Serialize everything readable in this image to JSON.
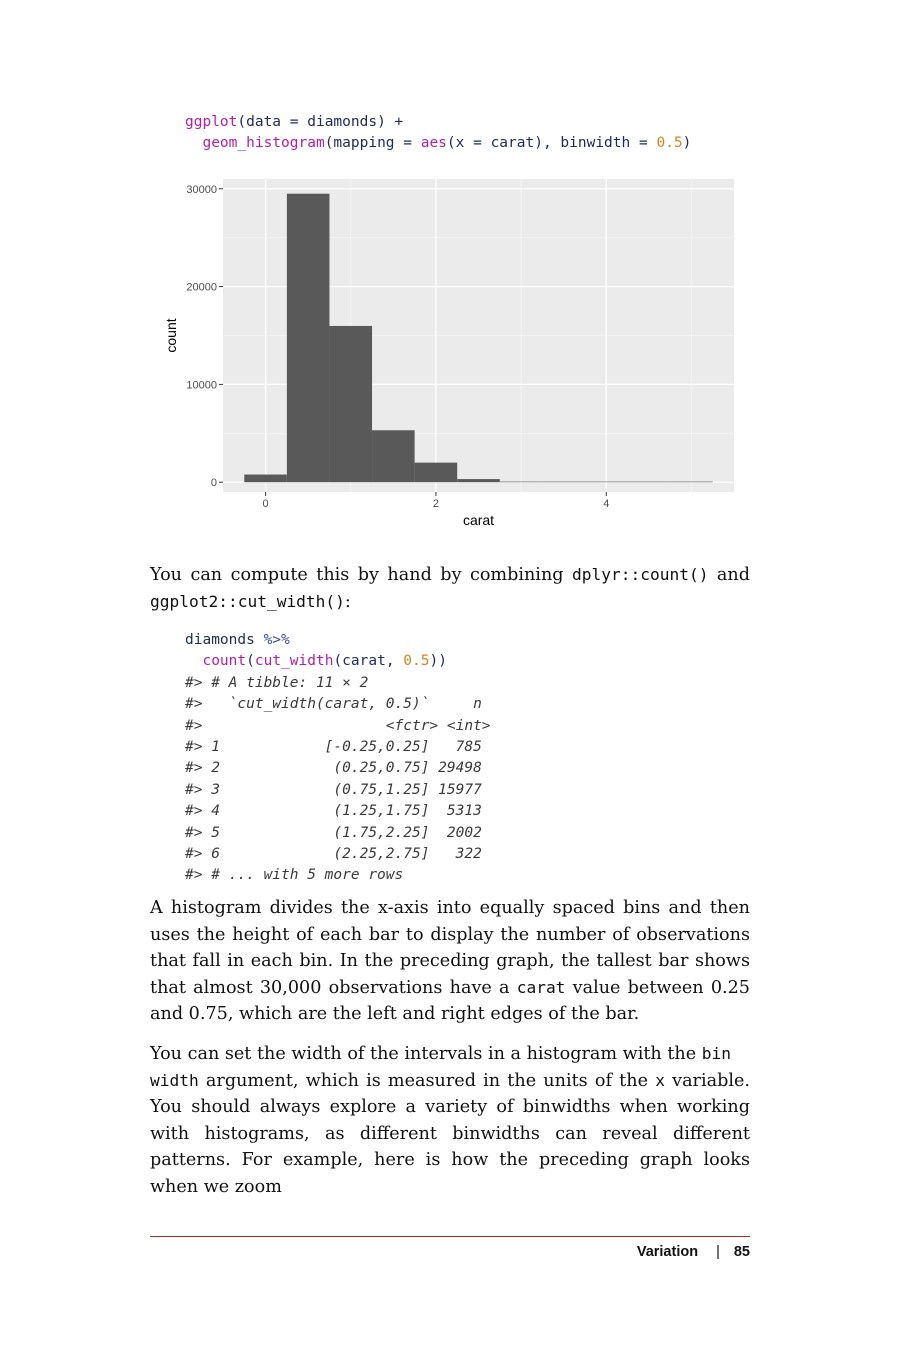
{
  "code_block_1": {
    "lines": [
      [
        {
          "t": "ggplot",
          "c": "fn"
        },
        {
          "t": "(data = diamonds) +",
          "c": "plain"
        }
      ],
      [
        {
          "t": "  ",
          "c": "plain"
        },
        {
          "t": "geom_histogram",
          "c": "fn"
        },
        {
          "t": "(mapping = ",
          "c": "plain"
        },
        {
          "t": "aes",
          "c": "fn"
        },
        {
          "t": "(x = carat), binwidth = ",
          "c": "plain"
        },
        {
          "t": "0.5",
          "c": "num"
        },
        {
          "t": ")",
          "c": "plain"
        }
      ]
    ]
  },
  "chart_data": {
    "type": "bar",
    "xlabel": "carat",
    "ylabel": "count",
    "xlim": [
      -0.5,
      5.5
    ],
    "ylim": [
      -1000,
      31000
    ],
    "xticks": [
      0,
      2,
      4
    ],
    "yticks": [
      0,
      10000,
      20000,
      30000
    ],
    "ytick_labels": [
      "0",
      "10000",
      "20000",
      "30000"
    ],
    "bins": [
      {
        "x0": -0.25,
        "x1": 0.25,
        "count": 785
      },
      {
        "x0": 0.25,
        "x1": 0.75,
        "count": 29498
      },
      {
        "x0": 0.75,
        "x1": 1.25,
        "count": 15977
      },
      {
        "x0": 1.25,
        "x1": 1.75,
        "count": 5313
      },
      {
        "x0": 1.75,
        "x1": 2.25,
        "count": 2002
      },
      {
        "x0": 2.25,
        "x1": 2.75,
        "count": 322
      },
      {
        "x0": 2.75,
        "x1": 3.25,
        "count": 32
      },
      {
        "x0": 3.25,
        "x1": 3.75,
        "count": 5
      },
      {
        "x0": 3.75,
        "x1": 4.25,
        "count": 4
      },
      {
        "x0": 4.25,
        "x1": 4.75,
        "count": 1
      },
      {
        "x0": 4.75,
        "x1": 5.25,
        "count": 1
      }
    ],
    "bar_color": "#595959",
    "panel_color": "#ebebeb",
    "grid": true
  },
  "para1": {
    "pre": "You can compute this by hand by combining ",
    "code1": "dplyr::count()",
    "mid": " and ",
    "code2": "ggplot2::cut_width()",
    "post": ":"
  },
  "code_block_2": {
    "lines": [
      [
        {
          "t": "diamonds ",
          "c": "plain"
        },
        {
          "t": "%>%",
          "c": "op"
        }
      ],
      [
        {
          "t": "  ",
          "c": "plain"
        },
        {
          "t": "count",
          "c": "fn"
        },
        {
          "t": "(",
          "c": "plain"
        },
        {
          "t": "cut_width",
          "c": "fn"
        },
        {
          "t": "(carat, ",
          "c": "plain"
        },
        {
          "t": "0.5",
          "c": "num"
        },
        {
          "t": "))",
          "c": "plain"
        }
      ],
      [
        {
          "t": "#> # A tibble: 11 × 2",
          "c": "out"
        }
      ],
      [
        {
          "t": "#>   `cut_width(carat, 0.5)`     n",
          "c": "out"
        }
      ],
      [
        {
          "t": "#>                     <fctr> <int>",
          "c": "out"
        }
      ],
      [
        {
          "t": "#> 1            [-0.25,0.25]   785",
          "c": "out"
        }
      ],
      [
        {
          "t": "#> 2             (0.25,0.75] 29498",
          "c": "out"
        }
      ],
      [
        {
          "t": "#> 3             (0.75,1.25] 15977",
          "c": "out"
        }
      ],
      [
        {
          "t": "#> 4             (1.25,1.75]  5313",
          "c": "out"
        }
      ],
      [
        {
          "t": "#> 5             (1.75,2.25]  2002",
          "c": "out"
        }
      ],
      [
        {
          "t": "#> 6             (2.25,2.75]   322",
          "c": "out"
        }
      ],
      [
        {
          "t": "#> # ... with 5 more rows",
          "c": "out"
        }
      ]
    ]
  },
  "para2": {
    "pre": "A histogram divides the x-axis into equally spaced bins and then uses the height of each bar to display the number of observations that fall in each bin. In the preceding graph, the tallest bar shows that almost 30,000 observations have a ",
    "code": "carat",
    "post": " value between 0.25 and 0.75, which are the left and right edges of the bar."
  },
  "para3": {
    "pre": "You can set the width of the intervals in a histogram with the ",
    "code1a": "bin",
    "code1b": "width",
    "mid": " argument, which is measured in the units of the ",
    "code2": "x",
    "post": " variable. You should always explore a variety of binwidths when working with histograms, as different binwidths can reveal different patterns. For example, here is how the preceding graph looks when we zoom"
  },
  "footer": {
    "section": "Variation",
    "separator": "|",
    "page_number": "85"
  }
}
